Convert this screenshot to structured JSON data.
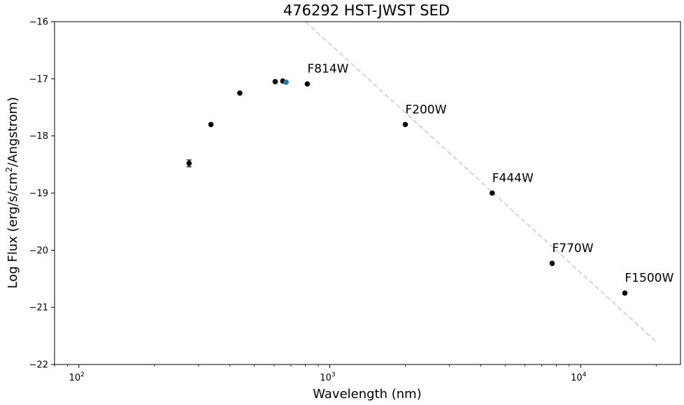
{
  "chart_data": {
    "type": "scatter",
    "title": "476292 HST-JWST SED",
    "xlabel": "Wavelength (nm)",
    "ylabel_prefix": "Log Flux (erg/s/cm",
    "ylabel_sup": "2",
    "ylabel_suffix": "/Angstrom)",
    "x_scale": "log",
    "xlim": [
      80,
      25000
    ],
    "ylim": [
      -22,
      -16
    ],
    "x_ticks": [
      {
        "value": 100,
        "base": "10",
        "exp": "2"
      },
      {
        "value": 1000,
        "base": "10",
        "exp": "3"
      },
      {
        "value": 10000,
        "base": "10",
        "exp": "4"
      }
    ],
    "y_ticks": [
      -22,
      -21,
      -20,
      -19,
      -18,
      -17,
      -16
    ],
    "y_tick_labels": [
      "−22",
      "−21",
      "−20",
      "−19",
      "−18",
      "−17",
      "−16"
    ],
    "grid": false,
    "legend": "none",
    "series": [
      {
        "color": "#000000",
        "points": [
          {
            "x": 275,
            "y": -18.48,
            "yerr": 0.06
          },
          {
            "x": 336,
            "y": -17.8
          },
          {
            "x": 438,
            "y": -17.25
          },
          {
            "x": 606,
            "y": -17.05
          },
          {
            "x": 650,
            "y": -17.04
          },
          {
            "x": 814,
            "y": -17.09
          },
          {
            "x": 2000,
            "y": -17.8
          },
          {
            "x": 4440,
            "y": -19.0
          },
          {
            "x": 7700,
            "y": -20.23
          },
          {
            "x": 15000,
            "y": -20.75
          }
        ]
      },
      {
        "color": "#1f77b4",
        "points": [
          {
            "x": 670,
            "y": -17.06
          }
        ]
      }
    ],
    "reference_line": {
      "color": "#cccccc",
      "style": "dashed",
      "points": [
        {
          "x": 800,
          "y": -16.0
        },
        {
          "x": 20000,
          "y": -21.6
        }
      ]
    },
    "annotations": [
      {
        "text": "F814W",
        "x": 814,
        "y": -17.09
      },
      {
        "text": "F200W",
        "x": 2000,
        "y": -17.8
      },
      {
        "text": "F444W",
        "x": 4440,
        "y": -19.0
      },
      {
        "text": "F770W",
        "x": 7700,
        "y": -20.23
      },
      {
        "text": "F1500W",
        "x": 15000,
        "y": -20.75
      }
    ]
  }
}
